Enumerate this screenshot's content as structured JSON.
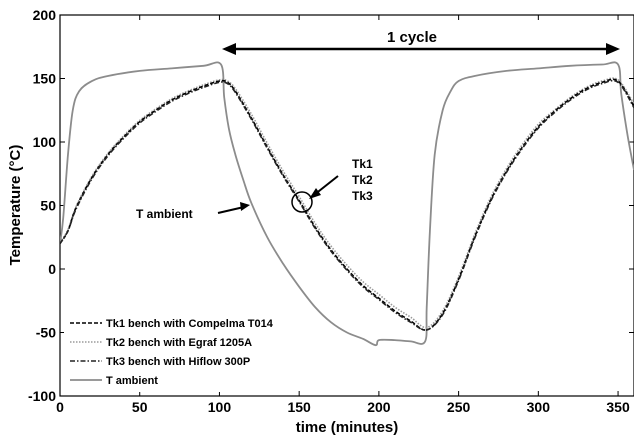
{
  "chart_data": {
    "type": "line",
    "xlabel": "time (minutes)",
    "ylabel": "Temperature (°C)",
    "xlim": [
      0,
      360
    ],
    "ylim": [
      -100,
      200
    ],
    "xticks": [
      "0",
      "50",
      "100",
      "150",
      "200",
      "250",
      "300",
      "350"
    ],
    "yticks": [
      "-100",
      "-50",
      "0",
      "50",
      "100",
      "150",
      "200"
    ],
    "grid": false,
    "legend_position": "bottom-left",
    "series": [
      {
        "name": "Tk1 bench with Compelma T014",
        "style": "dashed",
        "color": "#000000",
        "x": [
          0,
          5,
          10,
          20,
          30,
          40,
          50,
          60,
          70,
          80,
          90,
          100,
          105,
          110,
          120,
          130,
          140,
          150,
          160,
          170,
          180,
          190,
          200,
          210,
          220,
          230,
          240,
          250,
          260,
          270,
          280,
          290,
          300,
          310,
          320,
          330,
          340,
          350,
          360
        ],
        "y": [
          20,
          30,
          48,
          72,
          90,
          104,
          116,
          125,
          133,
          139,
          144,
          148,
          147,
          140,
          119,
          96,
          74,
          54,
          33,
          15,
          0,
          -13,
          -23,
          -33,
          -41,
          -48,
          -35,
          -8,
          25,
          54,
          77,
          96,
          112,
          124,
          134,
          142,
          147,
          148,
          128
        ]
      },
      {
        "name": "Tk2 bench with Egraf 1205A",
        "style": "dotted",
        "color": "#9a9a9a",
        "x": [
          0,
          5,
          10,
          20,
          30,
          40,
          50,
          60,
          70,
          80,
          90,
          100,
          105,
          110,
          120,
          130,
          140,
          150,
          160,
          170,
          180,
          190,
          200,
          210,
          220,
          230,
          240,
          250,
          260,
          270,
          280,
          290,
          300,
          310,
          320,
          330,
          340,
          350,
          360
        ],
        "y": [
          21,
          31,
          49,
          73,
          91,
          105,
          117,
          126,
          134,
          140,
          145,
          149,
          148,
          142,
          122,
          99,
          77,
          57,
          36,
          18,
          3,
          -10,
          -20,
          -30,
          -38,
          -46,
          -33,
          -6,
          27,
          56,
          79,
          98,
          114,
          125,
          135,
          143,
          148,
          149,
          130
        ]
      },
      {
        "name": "Tk3 bench with Hiflow 300P",
        "style": "dashdot",
        "color": "#222222",
        "x": [
          0,
          5,
          10,
          20,
          30,
          40,
          50,
          60,
          70,
          80,
          90,
          100,
          105,
          110,
          120,
          130,
          140,
          150,
          160,
          170,
          180,
          190,
          200,
          210,
          220,
          230,
          240,
          250,
          260,
          270,
          280,
          290,
          300,
          310,
          320,
          330,
          340,
          350,
          360
        ],
        "y": [
          20,
          30,
          47,
          71,
          89,
          103,
          115,
          124,
          132,
          138,
          143,
          147,
          146,
          139,
          118,
          95,
          73,
          53,
          32,
          14,
          -1,
          -14,
          -24,
          -34,
          -42,
          -48,
          -36,
          -9,
          24,
          53,
          76,
          95,
          111,
          123,
          133,
          141,
          146,
          147,
          127
        ]
      },
      {
        "name": "T ambient",
        "style": "solid",
        "color": "#8c8c8c",
        "x": [
          0,
          2,
          5,
          8,
          12,
          20,
          30,
          50,
          70,
          90,
          101,
          103,
          106,
          110,
          115,
          120,
          130,
          140,
          150,
          160,
          170,
          180,
          190,
          198,
          200,
          210,
          220,
          229,
          230,
          232,
          235,
          240,
          245,
          250,
          260,
          280,
          300,
          320,
          340,
          350,
          352,
          356,
          360
        ],
        "y": [
          20,
          40,
          90,
          125,
          140,
          148,
          152,
          156,
          158,
          160,
          161,
          135,
          110,
          90,
          70,
          52,
          25,
          4,
          -14,
          -30,
          -42,
          -50,
          -55,
          -60,
          -56,
          -56,
          -57,
          -57,
          -30,
          30,
          90,
          125,
          140,
          148,
          152,
          156,
          158,
          160,
          161,
          161,
          138,
          105,
          78
        ]
      }
    ],
    "annotations": {
      "cycle_label": "1 cycle",
      "tk_labels": [
        "Tk1",
        "Tk2",
        "Tk3"
      ],
      "ambient_label": "T ambient"
    }
  },
  "colors": {
    "axis": "#000000",
    "ambient": "#8c8c8c",
    "tk2": "#9a9a9a"
  }
}
